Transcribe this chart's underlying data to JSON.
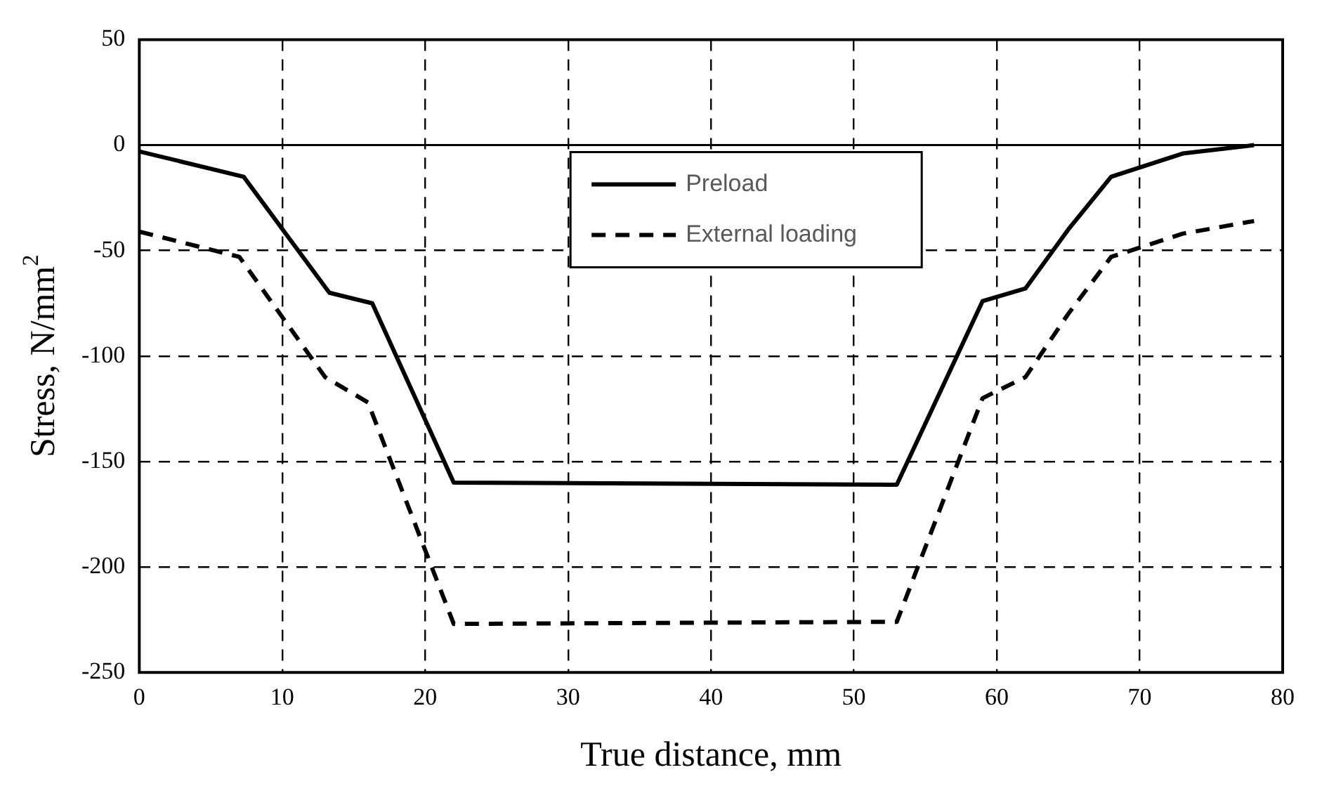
{
  "chart_data": {
    "type": "line",
    "xlabel": "True distance, mm",
    "ylabel": "Stress, N/mm$^{2}$",
    "xlim": [
      0,
      80
    ],
    "xticks": [
      0,
      10,
      20,
      30,
      40,
      50,
      60,
      70,
      80
    ],
    "ylim": [
      -250,
      50
    ],
    "yticks": [
      -250,
      -200,
      -150,
      -100,
      -50,
      0,
      50
    ],
    "grid": true,
    "legend": "top",
    "marker": "none",
    "ref_lines": [
      {
        "axis": "y",
        "value": 0,
        "color": "#000000",
        "line_style": "solid"
      }
    ],
    "series": [
      {
        "name": "Preload",
        "color": "#000000",
        "line_style": "solid",
        "x": [
          0,
          7.3,
          13.3,
          16.3,
          22,
          53,
          59,
          62,
          65,
          68,
          73,
          78
        ],
        "values": [
          -3,
          -15,
          -70,
          -75,
          -160,
          -161,
          -74,
          -68,
          -40,
          -15,
          -4,
          0
        ]
      },
      {
        "name": "External loading",
        "color": "#000000",
        "line_style": "dashed",
        "x": [
          0,
          7,
          13,
          16,
          22,
          53,
          59,
          62,
          65,
          68,
          73,
          78
        ],
        "values": [
          -41,
          -53,
          -110,
          -122,
          -227,
          -226,
          -120,
          -110,
          -80,
          -53,
          -42,
          -36
        ]
      }
    ]
  }
}
